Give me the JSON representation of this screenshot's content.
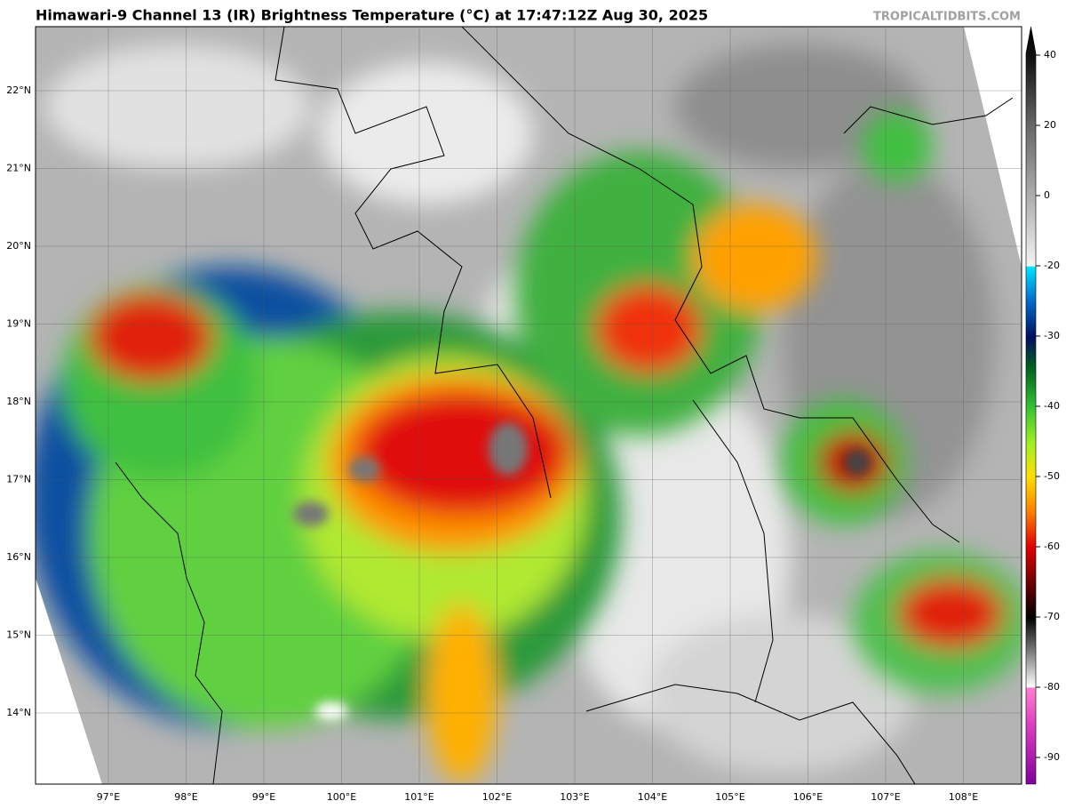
{
  "header": {
    "title": "Himawari-9 Channel 13 (IR) Brightness Temperature (°C) at 17:47:12Z Aug 30, 2025",
    "credit": "TROPICALTIDBITS.COM"
  },
  "map": {
    "lon_labels": [
      "97°E",
      "98°E",
      "99°E",
      "100°E",
      "101°E",
      "102°E",
      "103°E",
      "104°E",
      "105°E",
      "106°E",
      "107°E",
      "108°E"
    ],
    "lat_labels": [
      "22°N",
      "21°N",
      "20°N",
      "19°N",
      "18°N",
      "17°N",
      "16°N",
      "15°N",
      "14°N"
    ]
  },
  "colorbar": {
    "ticks": [
      40,
      20,
      0,
      -20,
      -30,
      -40,
      -50,
      -60,
      -70,
      -80,
      -90
    ]
  }
}
